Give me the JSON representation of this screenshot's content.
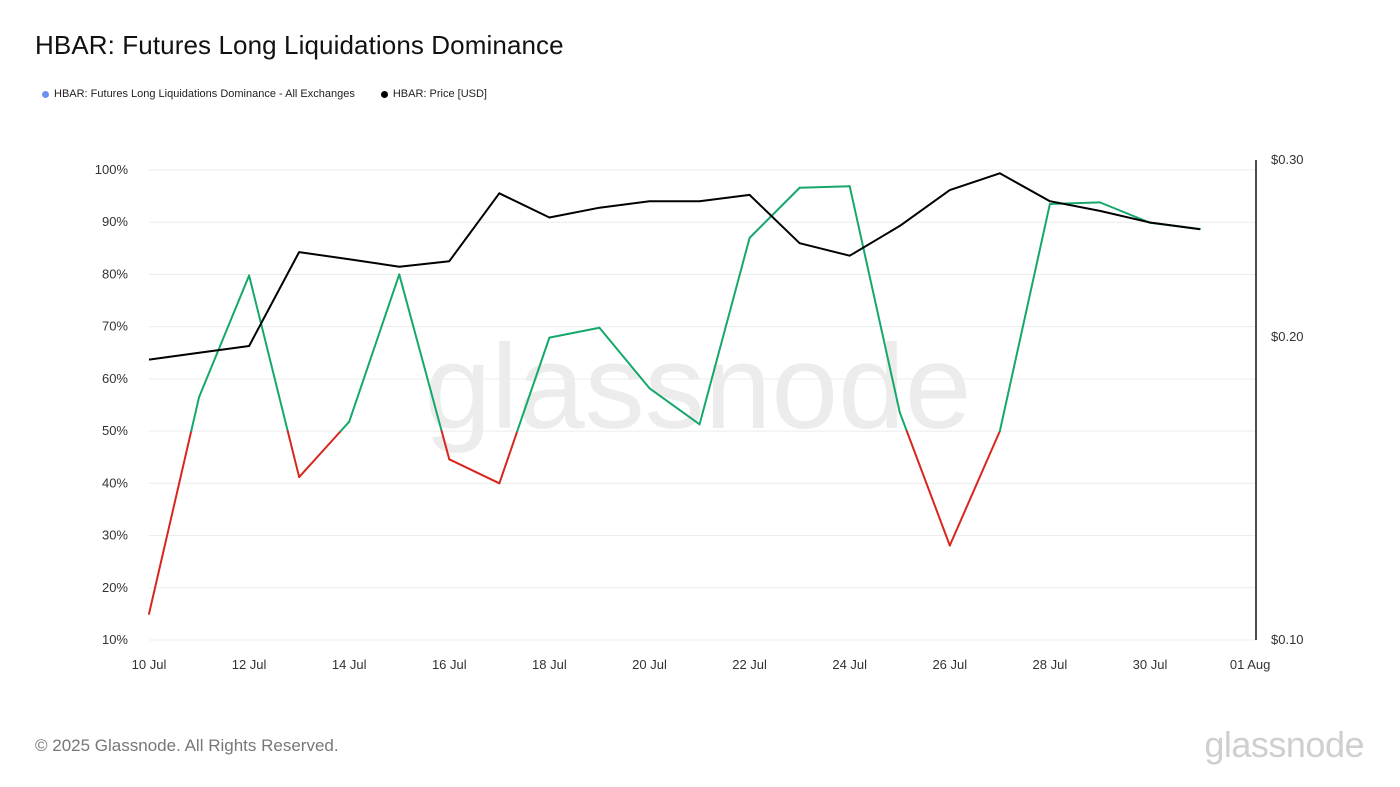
{
  "header": {
    "title": "HBAR: Futures Long Liquidations Dominance"
  },
  "legend": {
    "items": [
      {
        "label": "HBAR: Futures Long Liquidations Dominance - All Exchanges",
        "color": "#6f8ff0"
      },
      {
        "label": "HBAR: Price [USD]",
        "color": "#000000"
      }
    ]
  },
  "footer": {
    "copyright": "© 2025 Glassnode. All Rights Reserved.",
    "brand": "glassnode"
  },
  "watermark": "glassnode",
  "chart_data": {
    "type": "line",
    "x_ticks": [
      "10 Jul",
      "12 Jul",
      "14 Jul",
      "16 Jul",
      "18 Jul",
      "20 Jul",
      "22 Jul",
      "24 Jul",
      "26 Jul",
      "28 Jul",
      "30 Jul",
      "01 Aug"
    ],
    "y_left_ticks": [
      "10%",
      "20%",
      "30%",
      "40%",
      "50%",
      "60%",
      "70%",
      "80%",
      "90%",
      "100%"
    ],
    "y_left_range": [
      10,
      100
    ],
    "y_right_ticks": [
      "$0.10",
      "$0.20",
      "$0.30"
    ],
    "y_right_range": [
      0.1,
      0.3
    ],
    "y_right_scale": "log",
    "threshold": 50,
    "colors": {
      "above": "#16a86a",
      "below": "#d9261c",
      "price": "#000000"
    },
    "x": [
      "10 Jul",
      "11 Jul",
      "12 Jul",
      "13 Jul",
      "14 Jul",
      "15 Jul",
      "16 Jul",
      "17 Jul",
      "18 Jul",
      "19 Jul",
      "20 Jul",
      "21 Jul",
      "22 Jul",
      "23 Jul",
      "24 Jul",
      "25 Jul",
      "26 Jul",
      "27 Jul",
      "28 Jul",
      "29 Jul",
      "30 Jul",
      "31 Jul"
    ],
    "series": [
      {
        "name": "HBAR: Futures Long Liquidations Dominance - All Exchanges",
        "values": [
          15,
          56.5,
          79.8,
          41.2,
          51.8,
          80.0,
          44.6,
          40.0,
          67.9,
          69.8,
          58.2,
          51.3,
          87.0,
          96.6,
          96.9,
          53.6,
          28.1,
          50.0,
          93.5,
          93.8,
          89.9,
          88.7
        ]
      },
      {
        "name": "HBAR: Price [USD]",
        "values": [
          0.19,
          0.193,
          0.196,
          0.243,
          0.239,
          0.235,
          0.238,
          0.278,
          0.263,
          0.269,
          0.273,
          0.273,
          0.277,
          0.248,
          0.241,
          0.258,
          0.28,
          0.291,
          0.273,
          0.267,
          0.26,
          0.256
        ]
      }
    ]
  }
}
